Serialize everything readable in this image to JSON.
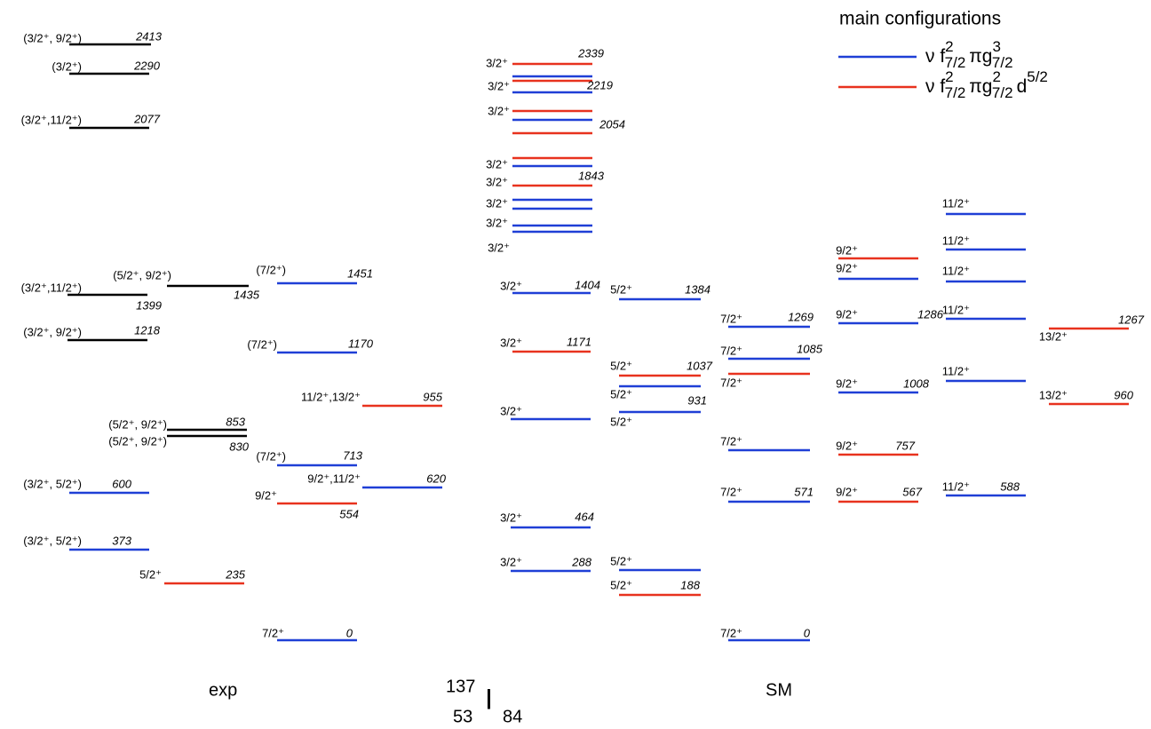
{
  "legend": {
    "title": "main configurations",
    "entries": [
      [
        "ν f",
        "2",
        "7/2",
        "πg",
        "3",
        "7/2"
      ],
      [
        "ν f",
        "2",
        "7/2",
        "πg",
        "2",
        "7/2",
        "d",
        "5/2"
      ]
    ]
  },
  "columns": {
    "exp": "exp",
    "sm": "SM"
  },
  "nucleus": {
    "mass": "137",
    "proton": "53",
    "symbol": "I",
    "neutron": "84"
  },
  "spins": [
    "(3/2⁺, 9/2⁺)",
    "(3/2⁺)",
    "(3/2⁺,11/2⁺)",
    "(3/2⁺,11/2⁺)",
    "(3/2⁺, 9/2⁺)",
    "(3/2⁺, 5/2⁺)",
    "(3/2⁺, 5/2⁺)",
    "(5/2⁺, 9/2⁺)",
    "(5/2⁺, 9/2⁺)",
    "(5/2⁺, 9/2⁺)",
    "5/2⁺",
    "(7/2⁺)",
    "(7/2⁺)",
    "(7/2⁺)",
    "9/2⁺",
    "7/2⁺",
    "11/2⁺,13/2⁺",
    "9/2⁺,11/2⁺",
    "3/2⁺",
    "3/2⁺",
    "3/2⁺",
    "3/2⁺",
    "3/2⁺",
    "3/2⁺",
    "3/2⁺",
    "3/2⁺",
    "3/2⁺",
    "3/2⁺",
    "3/2⁺",
    "3/2⁺",
    "3/2⁺",
    "5/2⁺",
    "5/2⁺",
    "5/2⁺",
    "5/2⁺",
    "5/2⁺",
    "5/2⁺",
    "7/2⁺",
    "7/2⁺",
    "7/2⁺",
    "7/2⁺",
    "7/2⁺",
    "7/2⁺",
    "9/2⁺",
    "9/2⁺",
    "9/2⁺",
    "9/2⁺",
    "9/2⁺",
    "9/2⁺",
    "11/2⁺",
    "11/2⁺",
    "11/2⁺",
    "11/2⁺",
    "11/2⁺",
    "11/2⁺",
    "13/2⁺",
    "13/2⁺"
  ],
  "energies": [
    "2413",
    "2290",
    "2077",
    "1399",
    "1218",
    "600",
    "373",
    "1435",
    "853",
    "830",
    "235",
    "1451",
    "1170",
    "713",
    "554",
    "0",
    "955",
    "620",
    "2339",
    "2219",
    "2054",
    "1843",
    "1404",
    "1171",
    "464",
    "288",
    "1384",
    "1037",
    "931",
    "188",
    "1269",
    "1085",
    "571",
    "0",
    "1286",
    "1008",
    "757",
    "567",
    "588",
    "1267",
    "960"
  ]
}
